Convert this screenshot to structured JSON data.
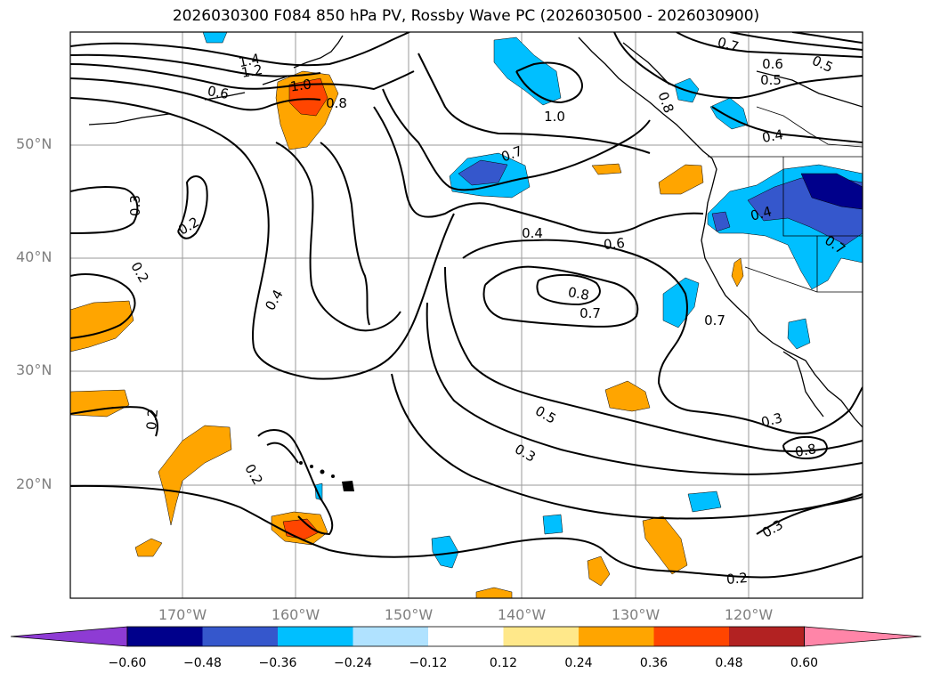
{
  "title": "2026030300 F084 850 hPa PV, Rossby Wave PC (2026030500 - 2026030900)",
  "lat_labels": [
    "50°N",
    "40°N",
    "30°N",
    "20°N"
  ],
  "lon_labels": [
    "170°W",
    "160°W",
    "150°W",
    "140°W",
    "130°W",
    "120°W"
  ],
  "colorbar": {
    "ticks": [
      "−0.60",
      "−0.48",
      "−0.36",
      "−0.24",
      "−0.12",
      "0.12",
      "0.24",
      "0.36",
      "0.48",
      "0.60"
    ],
    "colors": [
      "#8e3bd4",
      "#00008b",
      "#3557cc",
      "#00bfff",
      "#b0e2ff",
      "#ffffff",
      "#ffe88a",
      "#ffa500",
      "#ff4500",
      "#b22222",
      "#ff85a8"
    ]
  },
  "contour_labels": [
    "1.4",
    "1.2",
    "1.0",
    "0.8",
    "0.6",
    "0.7",
    "1.0",
    "0.7",
    "0.6",
    "0.5",
    "0.5",
    "0.8",
    "0.4",
    "0.4",
    "0.6",
    "0.8",
    "0.7",
    "0.7",
    "0.4",
    "0.3",
    "0.3",
    "0.2",
    "0.2",
    "0.4",
    "0.5",
    "0.3",
    "0.2",
    "0.2",
    "0.7",
    "0.8",
    "0.3",
    "0.2"
  ]
}
